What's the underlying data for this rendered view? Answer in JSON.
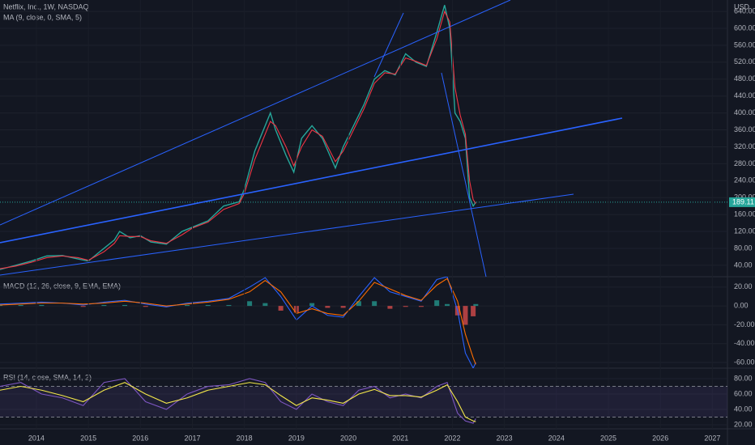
{
  "chart_data": [
    {
      "type": "line",
      "title": "Netflix, Inc., 1W, NASDAQ",
      "unit": "USD",
      "color": "#26a69a",
      "x": [
        2013.3,
        2013.6,
        2013.9,
        2014.2,
        2014.5,
        2014.8,
        2015.0,
        2015.3,
        2015.5,
        2015.6,
        2015.8,
        2016.0,
        2016.2,
        2016.5,
        2016.8,
        2017.0,
        2017.3,
        2017.6,
        2017.9,
        2018.0,
        2018.2,
        2018.5,
        2018.6,
        2018.8,
        2018.95,
        2019.1,
        2019.3,
        2019.5,
        2019.75,
        2019.9,
        2020.1,
        2020.3,
        2020.5,
        2020.7,
        2020.9,
        2021.1,
        2021.3,
        2021.5,
        2021.7,
        2021.85,
        2021.95,
        2022.05,
        2022.15,
        2022.25,
        2022.33,
        2022.4,
        2022.45
      ],
      "values": [
        30,
        40,
        50,
        62,
        63,
        55,
        50,
        80,
        100,
        120,
        105,
        110,
        95,
        90,
        120,
        130,
        145,
        180,
        190,
        220,
        310,
        400,
        360,
        300,
        260,
        340,
        370,
        340,
        270,
        320,
        370,
        420,
        480,
        500,
        490,
        540,
        520,
        510,
        590,
        655,
        600,
        400,
        380,
        340,
        200,
        180,
        189.11
      ],
      "series": [
        {
          "name": "MA (9, close, 0, SMA, 5)",
          "color": "#f23645",
          "values": [
            32,
            38,
            47,
            58,
            62,
            58,
            52,
            72,
            92,
            110,
            108,
            108,
            98,
            92,
            112,
            128,
            142,
            172,
            186,
            210,
            290,
            380,
            370,
            320,
            275,
            320,
            360,
            345,
            285,
            310,
            360,
            410,
            470,
            495,
            492,
            530,
            522,
            512,
            575,
            640,
            615,
            460,
            395,
            350,
            240,
            195,
            186
          ]
        }
      ],
      "last_value": 189.11,
      "xlim": [
        2013.3,
        2027.29
      ],
      "ylim": [
        13,
        667
      ],
      "yticks": [
        {
          "value": 40,
          "label": "40.00"
        },
        {
          "value": 80,
          "label": "80.00"
        },
        {
          "value": 120,
          "label": "120.00"
        },
        {
          "value": 160,
          "label": "160.00"
        },
        {
          "value": 200,
          "label": "200.00"
        },
        {
          "value": 240,
          "label": "240.00"
        },
        {
          "value": 280,
          "label": "280.00"
        },
        {
          "value": 320,
          "label": "320.00"
        },
        {
          "value": 360,
          "label": "360.00"
        },
        {
          "value": 400,
          "label": "400.00"
        },
        {
          "value": 440,
          "label": "440.00"
        },
        {
          "value": 480,
          "label": "480.00"
        },
        {
          "value": 520,
          "label": "520.00"
        },
        {
          "value": 560,
          "label": "560.00"
        },
        {
          "value": 600,
          "label": "600.00"
        },
        {
          "value": 640,
          "label": "640.00"
        }
      ],
      "grid": true
    },
    {
      "type": "line",
      "title": "MACD (12, 26, close, 9, EMA, EMA)",
      "x": [
        2013.3,
        2013.7,
        2014.1,
        2014.5,
        2014.9,
        2015.3,
        2015.7,
        2016.1,
        2016.5,
        2016.9,
        2017.3,
        2017.7,
        2018.1,
        2018.4,
        2018.7,
        2019.0,
        2019.3,
        2019.6,
        2019.9,
        2020.2,
        2020.5,
        2020.8,
        2021.1,
        2021.4,
        2021.7,
        2021.9,
        2022.1,
        2022.25,
        2022.4,
        2022.45
      ],
      "series": [
        {
          "color": "#2962ff",
          "values": [
            2,
            3,
            4,
            3,
            1,
            4,
            6,
            2,
            -1,
            3,
            5,
            8,
            20,
            30,
            10,
            -15,
            0,
            -10,
            -12,
            10,
            30,
            15,
            10,
            5,
            28,
            31,
            -5,
            -50,
            -66,
            -60
          ]
        },
        {
          "color": "#ff6d00",
          "values": [
            1,
            2,
            3,
            3,
            2,
            3,
            5,
            3,
            0,
            2,
            4,
            7,
            15,
            27,
            15,
            -8,
            -3,
            -8,
            -10,
            5,
            25,
            18,
            11,
            6,
            22,
            29,
            5,
            -30,
            -55,
            -62
          ]
        }
      ],
      "histogram": {
        "up_color": "#26a69a",
        "down_color": "#ef5350",
        "values": [
          1,
          1,
          1,
          0,
          -1,
          1,
          1,
          -1,
          -1,
          1,
          1,
          1,
          5,
          3,
          -5,
          -7,
          3,
          -2,
          -2,
          5,
          5,
          -3,
          -1,
          -1,
          6,
          2,
          -10,
          -20,
          -11,
          2
        ]
      },
      "xlim": [
        2013.3,
        2027.29
      ],
      "ylim": [
        -66,
        31
      ],
      "yticks": [
        {
          "value": 20,
          "label": "20.00"
        },
        {
          "value": 0,
          "label": "0.00"
        },
        {
          "value": -20,
          "label": "-20.00"
        },
        {
          "value": -40,
          "label": "-40.00"
        },
        {
          "value": -60,
          "label": "-60.00"
        }
      ],
      "grid": true
    },
    {
      "type": "line",
      "title": "RSI (14, close, SMA, 14, 2)",
      "x": [
        2013.3,
        2013.7,
        2014.1,
        2014.5,
        2014.9,
        2015.3,
        2015.7,
        2016.1,
        2016.5,
        2016.9,
        2017.3,
        2017.7,
        2018.1,
        2018.4,
        2018.7,
        2019.0,
        2019.3,
        2019.6,
        2019.9,
        2020.2,
        2020.5,
        2020.8,
        2021.1,
        2021.4,
        2021.7,
        2021.9,
        2022.1,
        2022.25,
        2022.4,
        2022.45
      ],
      "series": [
        {
          "color": "#7e57c2",
          "values": [
            70,
            75,
            60,
            55,
            45,
            75,
            80,
            50,
            40,
            60,
            70,
            72,
            80,
            75,
            50,
            40,
            60,
            50,
            45,
            65,
            70,
            55,
            60,
            55,
            70,
            75,
            35,
            25,
            22,
            28
          ]
        },
        {
          "color": "#f5e94a",
          "values": [
            65,
            70,
            65,
            58,
            50,
            65,
            75,
            60,
            48,
            55,
            65,
            70,
            75,
            72,
            58,
            45,
            55,
            52,
            48,
            60,
            66,
            58,
            58,
            56,
            65,
            72,
            50,
            30,
            25,
            24
          ]
        }
      ],
      "band": [
        30,
        70
      ],
      "xlim": [
        2013.3,
        2027.29
      ],
      "ylim": [
        14.7,
        93.7
      ],
      "yticks": [
        {
          "value": 80,
          "label": "80.00"
        },
        {
          "value": 60,
          "label": "60.00"
        },
        {
          "value": 40,
          "label": "40.00"
        },
        {
          "value": 20,
          "label": "20.00"
        }
      ],
      "xticks": [
        2014,
        2015,
        2016,
        2017,
        2018,
        2019,
        2020,
        2021,
        2022,
        2023,
        2024,
        2025,
        2026,
        2027
      ],
      "grid": true
    }
  ]
}
